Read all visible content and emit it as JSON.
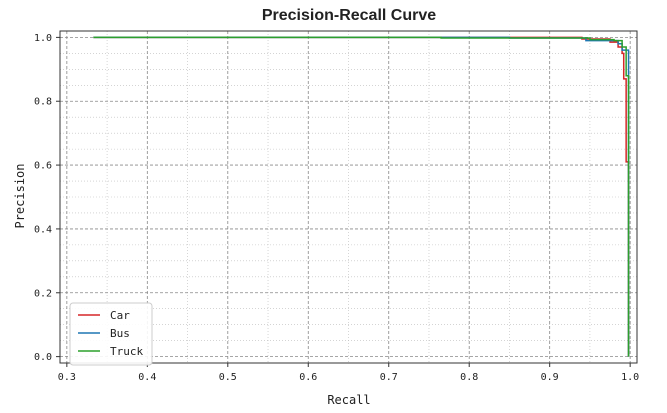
{
  "chart_data": {
    "type": "line",
    "title": "Precision-Recall Curve",
    "xlabel": "Recall",
    "ylabel": "Precision",
    "xlim": [
      0.3,
      1.0
    ],
    "ylim": [
      0.0,
      1.0
    ],
    "x_ticks": [
      "0.3",
      "0.4",
      "0.5",
      "0.6",
      "0.7",
      "0.8",
      "0.9",
      "1.0"
    ],
    "y_ticks": [
      "0.0",
      "0.2",
      "0.4",
      "0.6",
      "0.8",
      "1.0"
    ],
    "grid": true,
    "legend_position": "bottom-left",
    "series": [
      {
        "name": "Car",
        "color": "#d62728",
        "points": [
          [
            0.333,
            1.0
          ],
          [
            0.94,
            1.0
          ],
          [
            0.94,
            0.995
          ],
          [
            0.975,
            0.995
          ],
          [
            0.975,
            0.985
          ],
          [
            0.985,
            0.985
          ],
          [
            0.985,
            0.97
          ],
          [
            0.99,
            0.97
          ],
          [
            0.99,
            0.95
          ],
          [
            0.992,
            0.95
          ],
          [
            0.992,
            0.87
          ],
          [
            0.995,
            0.87
          ],
          [
            0.995,
            0.61
          ],
          [
            0.998,
            0.61
          ],
          [
            0.998,
            0.0
          ]
        ]
      },
      {
        "name": "Bus",
        "color": "#1f77b4",
        "points": [
          [
            0.333,
            1.0
          ],
          [
            0.85,
            1.0
          ],
          [
            0.85,
            0.998
          ],
          [
            0.945,
            0.998
          ],
          [
            0.945,
            0.99
          ],
          [
            0.985,
            0.99
          ],
          [
            0.985,
            0.98
          ],
          [
            0.99,
            0.98
          ],
          [
            0.99,
            0.96
          ],
          [
            0.998,
            0.96
          ],
          [
            0.998,
            0.0
          ]
        ]
      },
      {
        "name": "Truck",
        "color": "#2ca02c",
        "points": [
          [
            0.333,
            1.0
          ],
          [
            0.765,
            1.0
          ],
          [
            0.765,
            0.998
          ],
          [
            0.95,
            0.998
          ],
          [
            0.95,
            0.993
          ],
          [
            0.98,
            0.993
          ],
          [
            0.98,
            0.99
          ],
          [
            0.99,
            0.99
          ],
          [
            0.99,
            0.97
          ],
          [
            0.995,
            0.97
          ],
          [
            0.995,
            0.88
          ],
          [
            0.998,
            0.88
          ],
          [
            0.998,
            0.0
          ]
        ]
      }
    ]
  }
}
